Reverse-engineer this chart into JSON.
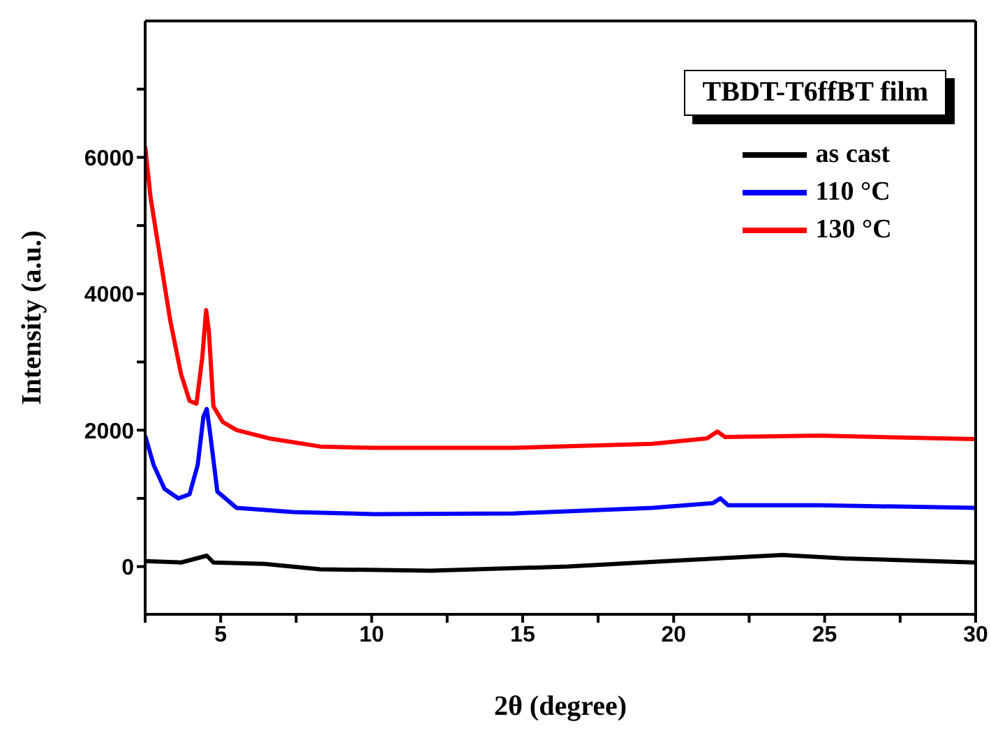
{
  "chart_data": {
    "type": "line",
    "xlabel": "2θ (degree)",
    "ylabel": "Intensity (a.u.)",
    "legend_title": "TBDT-T6ffBT film",
    "legend": "top right",
    "marker": "none",
    "line_style": "solid",
    "xlim": [
      2.5,
      30
    ],
    "xticks": [
      {
        "value": 2.5,
        "label": null
      },
      5,
      {
        "value": 7.5,
        "label": null
      },
      10,
      {
        "value": 12.5,
        "label": null
      },
      15,
      {
        "value": 17.5,
        "label": null
      },
      20,
      {
        "value": 22.5,
        "label": null
      },
      25,
      {
        "value": 27.5,
        "label": null
      },
      30
    ],
    "ylim": [
      -700,
      8000
    ],
    "yticks": [
      0,
      {
        "value": 1000,
        "label": null
      },
      2000,
      {
        "value": 3000,
        "label": null
      },
      4000,
      {
        "value": 5000,
        "label": null
      },
      6000,
      {
        "value": 7000,
        "label": null
      }
    ],
    "series": [
      {
        "name": "as cast",
        "color": "#000000",
        "x": [
          2.5,
          3.69,
          4.54,
          4.76,
          6.45,
          8.3,
          11.95,
          16.5,
          20.2,
          23.6,
          25.7,
          30
        ],
        "values": [
          80,
          60,
          160,
          60,
          40,
          -40,
          -60,
          0,
          90,
          170,
          120,
          60
        ]
      },
      {
        "name": "110 °C",
        "color": "#0000ff",
        "x": [
          2.5,
          2.78,
          3.14,
          3.6,
          3.97,
          4.24,
          4.43,
          4.54,
          4.65,
          4.89,
          5.53,
          7.4,
          10.1,
          14.7,
          19.3,
          21.3,
          21.55,
          21.8,
          24.8,
          30
        ],
        "values": [
          1920,
          1490,
          1140,
          1000,
          1060,
          1490,
          2200,
          2310,
          1960,
          1100,
          860,
          800,
          770,
          780,
          860,
          930,
          1000,
          900,
          900,
          860
        ]
      },
      {
        "name": "130 °C",
        "color": "#ff0000",
        "x": [
          2.5,
          2.68,
          2.96,
          3.33,
          3.69,
          3.97,
          4.2,
          4.39,
          4.52,
          4.61,
          4.76,
          5.07,
          5.53,
          6.6,
          8.3,
          10.1,
          14.7,
          19.3,
          21.1,
          21.45,
          21.7,
          24.8,
          30
        ],
        "values": [
          6160,
          5410,
          4630,
          3610,
          2820,
          2430,
          2390,
          3060,
          3760,
          3450,
          2350,
          2120,
          2000,
          1880,
          1760,
          1740,
          1740,
          1800,
          1880,
          1980,
          1900,
          1920,
          1870
        ]
      }
    ]
  }
}
